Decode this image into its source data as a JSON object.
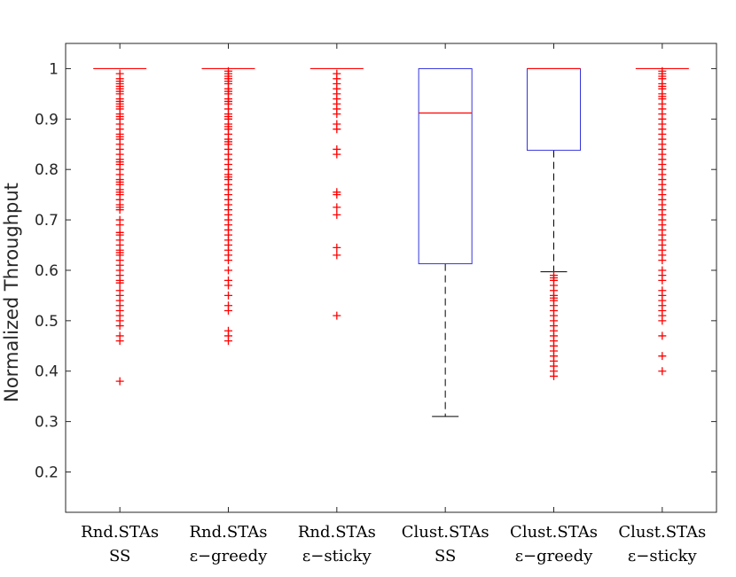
{
  "chart_data": {
    "type": "boxplot",
    "title": "",
    "xlabel": "",
    "ylabel": "Normalized Throughput",
    "ylim": [
      0.12,
      1.05
    ],
    "yticks": [
      "0.2",
      "0.3",
      "0.4",
      "0.5",
      "0.6",
      "0.7",
      "0.8",
      "0.9",
      "1"
    ],
    "grid": false,
    "categories": [
      {
        "line1": "Rnd.STAs",
        "line2": "SS"
      },
      {
        "line1": "Rnd.STAs",
        "line2": "ε−greedy"
      },
      {
        "line1": "Rnd.STAs",
        "line2": "ε−sticky"
      },
      {
        "line1": "Clust.STAs",
        "line2": "SS"
      },
      {
        "line1": "Clust.STAs",
        "line2": "ε−greedy"
      },
      {
        "line1": "Clust.STAs",
        "line2": "ε−sticky"
      }
    ],
    "boxes": [
      {
        "q1": 1.0,
        "median": 1.0,
        "q3": 1.0,
        "whisker_low": 1.0,
        "whisker_high": 1.0,
        "outliers": [
          0.99,
          0.98,
          0.975,
          0.97,
          0.965,
          0.96,
          0.955,
          0.95,
          0.94,
          0.935,
          0.93,
          0.925,
          0.92,
          0.91,
          0.905,
          0.9,
          0.89,
          0.88,
          0.87,
          0.865,
          0.86,
          0.85,
          0.84,
          0.83,
          0.82,
          0.815,
          0.81,
          0.8,
          0.79,
          0.78,
          0.775,
          0.77,
          0.76,
          0.755,
          0.75,
          0.74,
          0.73,
          0.725,
          0.72,
          0.7,
          0.69,
          0.675,
          0.67,
          0.66,
          0.65,
          0.64,
          0.635,
          0.63,
          0.62,
          0.61,
          0.6,
          0.59,
          0.58,
          0.575,
          0.56,
          0.55,
          0.54,
          0.53,
          0.52,
          0.51,
          0.5,
          0.49,
          0.47,
          0.46,
          0.38
        ]
      },
      {
        "q1": 1.0,
        "median": 1.0,
        "q3": 1.0,
        "whisker_low": 1.0,
        "whisker_high": 1.0,
        "outliers": [
          0.995,
          0.99,
          0.985,
          0.98,
          0.975,
          0.97,
          0.96,
          0.955,
          0.95,
          0.94,
          0.935,
          0.93,
          0.92,
          0.91,
          0.905,
          0.9,
          0.89,
          0.885,
          0.88,
          0.87,
          0.86,
          0.855,
          0.85,
          0.84,
          0.83,
          0.82,
          0.81,
          0.8,
          0.79,
          0.785,
          0.78,
          0.77,
          0.76,
          0.75,
          0.74,
          0.73,
          0.72,
          0.71,
          0.7,
          0.69,
          0.68,
          0.67,
          0.66,
          0.65,
          0.64,
          0.63,
          0.62,
          0.6,
          0.58,
          0.57,
          0.55,
          0.53,
          0.52,
          0.48,
          0.47,
          0.46
        ]
      },
      {
        "q1": 1.0,
        "median": 1.0,
        "q3": 1.0,
        "whisker_low": 1.0,
        "whisker_high": 1.0,
        "outliers": [
          0.99,
          0.98,
          0.97,
          0.96,
          0.95,
          0.94,
          0.93,
          0.92,
          0.91,
          0.89,
          0.88,
          0.84,
          0.83,
          0.755,
          0.75,
          0.725,
          0.71,
          0.645,
          0.63,
          0.51
        ]
      },
      {
        "q1": 0.613,
        "median": 0.912,
        "q3": 1.0,
        "whisker_low": 0.31,
        "whisker_high": 1.0,
        "outliers": []
      },
      {
        "q1": 0.838,
        "median": 1.0,
        "q3": 1.0,
        "whisker_low": 0.597,
        "whisker_high": 1.0,
        "outliers": [
          0.59,
          0.585,
          0.58,
          0.57,
          0.56,
          0.55,
          0.545,
          0.54,
          0.53,
          0.52,
          0.51,
          0.5,
          0.49,
          0.48,
          0.47,
          0.46,
          0.45,
          0.44,
          0.43,
          0.42,
          0.41,
          0.4,
          0.39
        ]
      },
      {
        "q1": 1.0,
        "median": 1.0,
        "q3": 1.0,
        "whisker_low": 1.0,
        "whisker_high": 1.0,
        "outliers": [
          0.995,
          0.99,
          0.985,
          0.98,
          0.97,
          0.965,
          0.96,
          0.95,
          0.945,
          0.94,
          0.93,
          0.92,
          0.91,
          0.9,
          0.89,
          0.88,
          0.87,
          0.86,
          0.85,
          0.84,
          0.83,
          0.82,
          0.81,
          0.8,
          0.79,
          0.78,
          0.77,
          0.76,
          0.75,
          0.74,
          0.73,
          0.72,
          0.71,
          0.7,
          0.69,
          0.68,
          0.67,
          0.66,
          0.65,
          0.64,
          0.63,
          0.62,
          0.6,
          0.59,
          0.58,
          0.56,
          0.55,
          0.54,
          0.53,
          0.52,
          0.51,
          0.5,
          0.47,
          0.43,
          0.4
        ]
      }
    ],
    "colors": {
      "box": "#3333dd",
      "median": "#ff0000",
      "outlier": "#ff0000",
      "whisker": "#000000",
      "axis": "#262626"
    }
  }
}
